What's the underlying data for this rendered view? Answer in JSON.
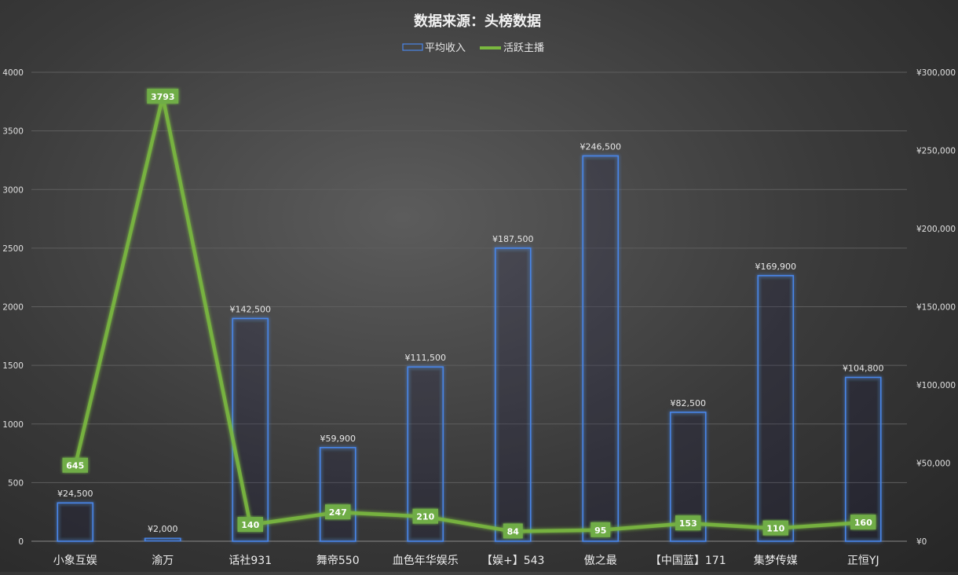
{
  "chart_data": {
    "type": "bar",
    "title": "数据来源：头榜数据",
    "categories": [
      "小象互娱",
      "渝万",
      "话社931",
      "舞帝550",
      "血色年华娱乐",
      "【娱+】543",
      "傲之最",
      "【中国蓝】171",
      "集梦传媒",
      "正恒YJ"
    ],
    "series": [
      {
        "name": "平均收入",
        "type": "bar",
        "axis": "right",
        "values": [
          24500,
          2000,
          142500,
          59900,
          111500,
          187500,
          246500,
          82500,
          169900,
          104800
        ],
        "labels": [
          "¥24,500",
          "¥2,000",
          "¥142,500",
          "¥59,900",
          "¥111,500",
          "¥187,500",
          "¥246,500",
          "¥82,500",
          "¥169,900",
          "¥104,800"
        ]
      },
      {
        "name": "活跃主播",
        "type": "line",
        "axis": "left",
        "values": [
          645,
          3793,
          140,
          247,
          210,
          84,
          95,
          153,
          110,
          160
        ]
      }
    ],
    "left_axis": {
      "ylim": [
        0,
        4000
      ],
      "ticks": [
        "0",
        "500",
        "1000",
        "1500",
        "2000",
        "2500",
        "3000",
        "3500",
        "4000"
      ]
    },
    "right_axis": {
      "ylim": [
        0,
        300000
      ],
      "ticks": [
        "¥0",
        "¥50,000",
        "¥100,000",
        "¥150,000",
        "¥200,000",
        "¥250,000",
        "¥300,000"
      ]
    },
    "grid": true,
    "legend": "top-center",
    "colors": {
      "bar_stroke": "#4a86e8",
      "bar_glow": "#2f6fd6",
      "line": "#7ab83f",
      "label_bg": "#70ad47",
      "grid": "#5e5e5e"
    }
  }
}
